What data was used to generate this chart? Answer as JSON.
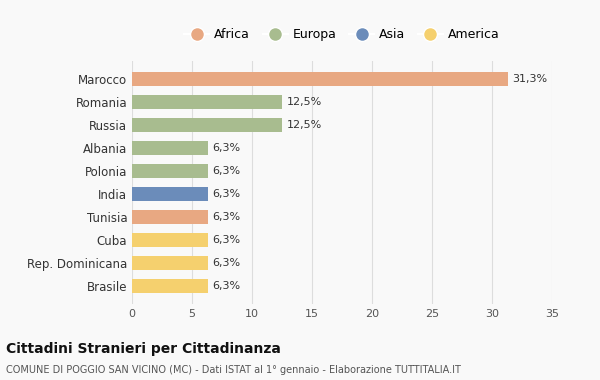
{
  "countries": [
    "Brasile",
    "Rep. Dominicana",
    "Cuba",
    "Tunisia",
    "India",
    "Polonia",
    "Albania",
    "Russia",
    "Romania",
    "Marocco"
  ],
  "values": [
    6.3,
    6.3,
    6.3,
    6.3,
    6.3,
    6.3,
    6.3,
    12.5,
    12.5,
    31.3
  ],
  "labels": [
    "6,3%",
    "6,3%",
    "6,3%",
    "6,3%",
    "6,3%",
    "6,3%",
    "6,3%",
    "12,5%",
    "12,5%",
    "31,3%"
  ],
  "colors": [
    "#f5d06e",
    "#f5d06e",
    "#f5d06e",
    "#e8a882",
    "#6b8cba",
    "#a8bc8f",
    "#a8bc8f",
    "#a8bc8f",
    "#a8bc8f",
    "#e8a882"
  ],
  "legend": [
    {
      "label": "Africa",
      "color": "#e8a882"
    },
    {
      "label": "Europa",
      "color": "#a8bc8f"
    },
    {
      "label": "Asia",
      "color": "#6b8cba"
    },
    {
      "label": "America",
      "color": "#f5d06e"
    }
  ],
  "title": "Cittadini Stranieri per Cittadinanza",
  "subtitle": "COMUNE DI POGGIO SAN VICINO (MC) - Dati ISTAT al 1° gennaio - Elaborazione TUTTITALIA.IT",
  "xlim": [
    0,
    35
  ],
  "xticks": [
    0,
    5,
    10,
    15,
    20,
    25,
    30,
    35
  ],
  "bg_color": "#f9f9f9",
  "grid_color": "#dddddd"
}
